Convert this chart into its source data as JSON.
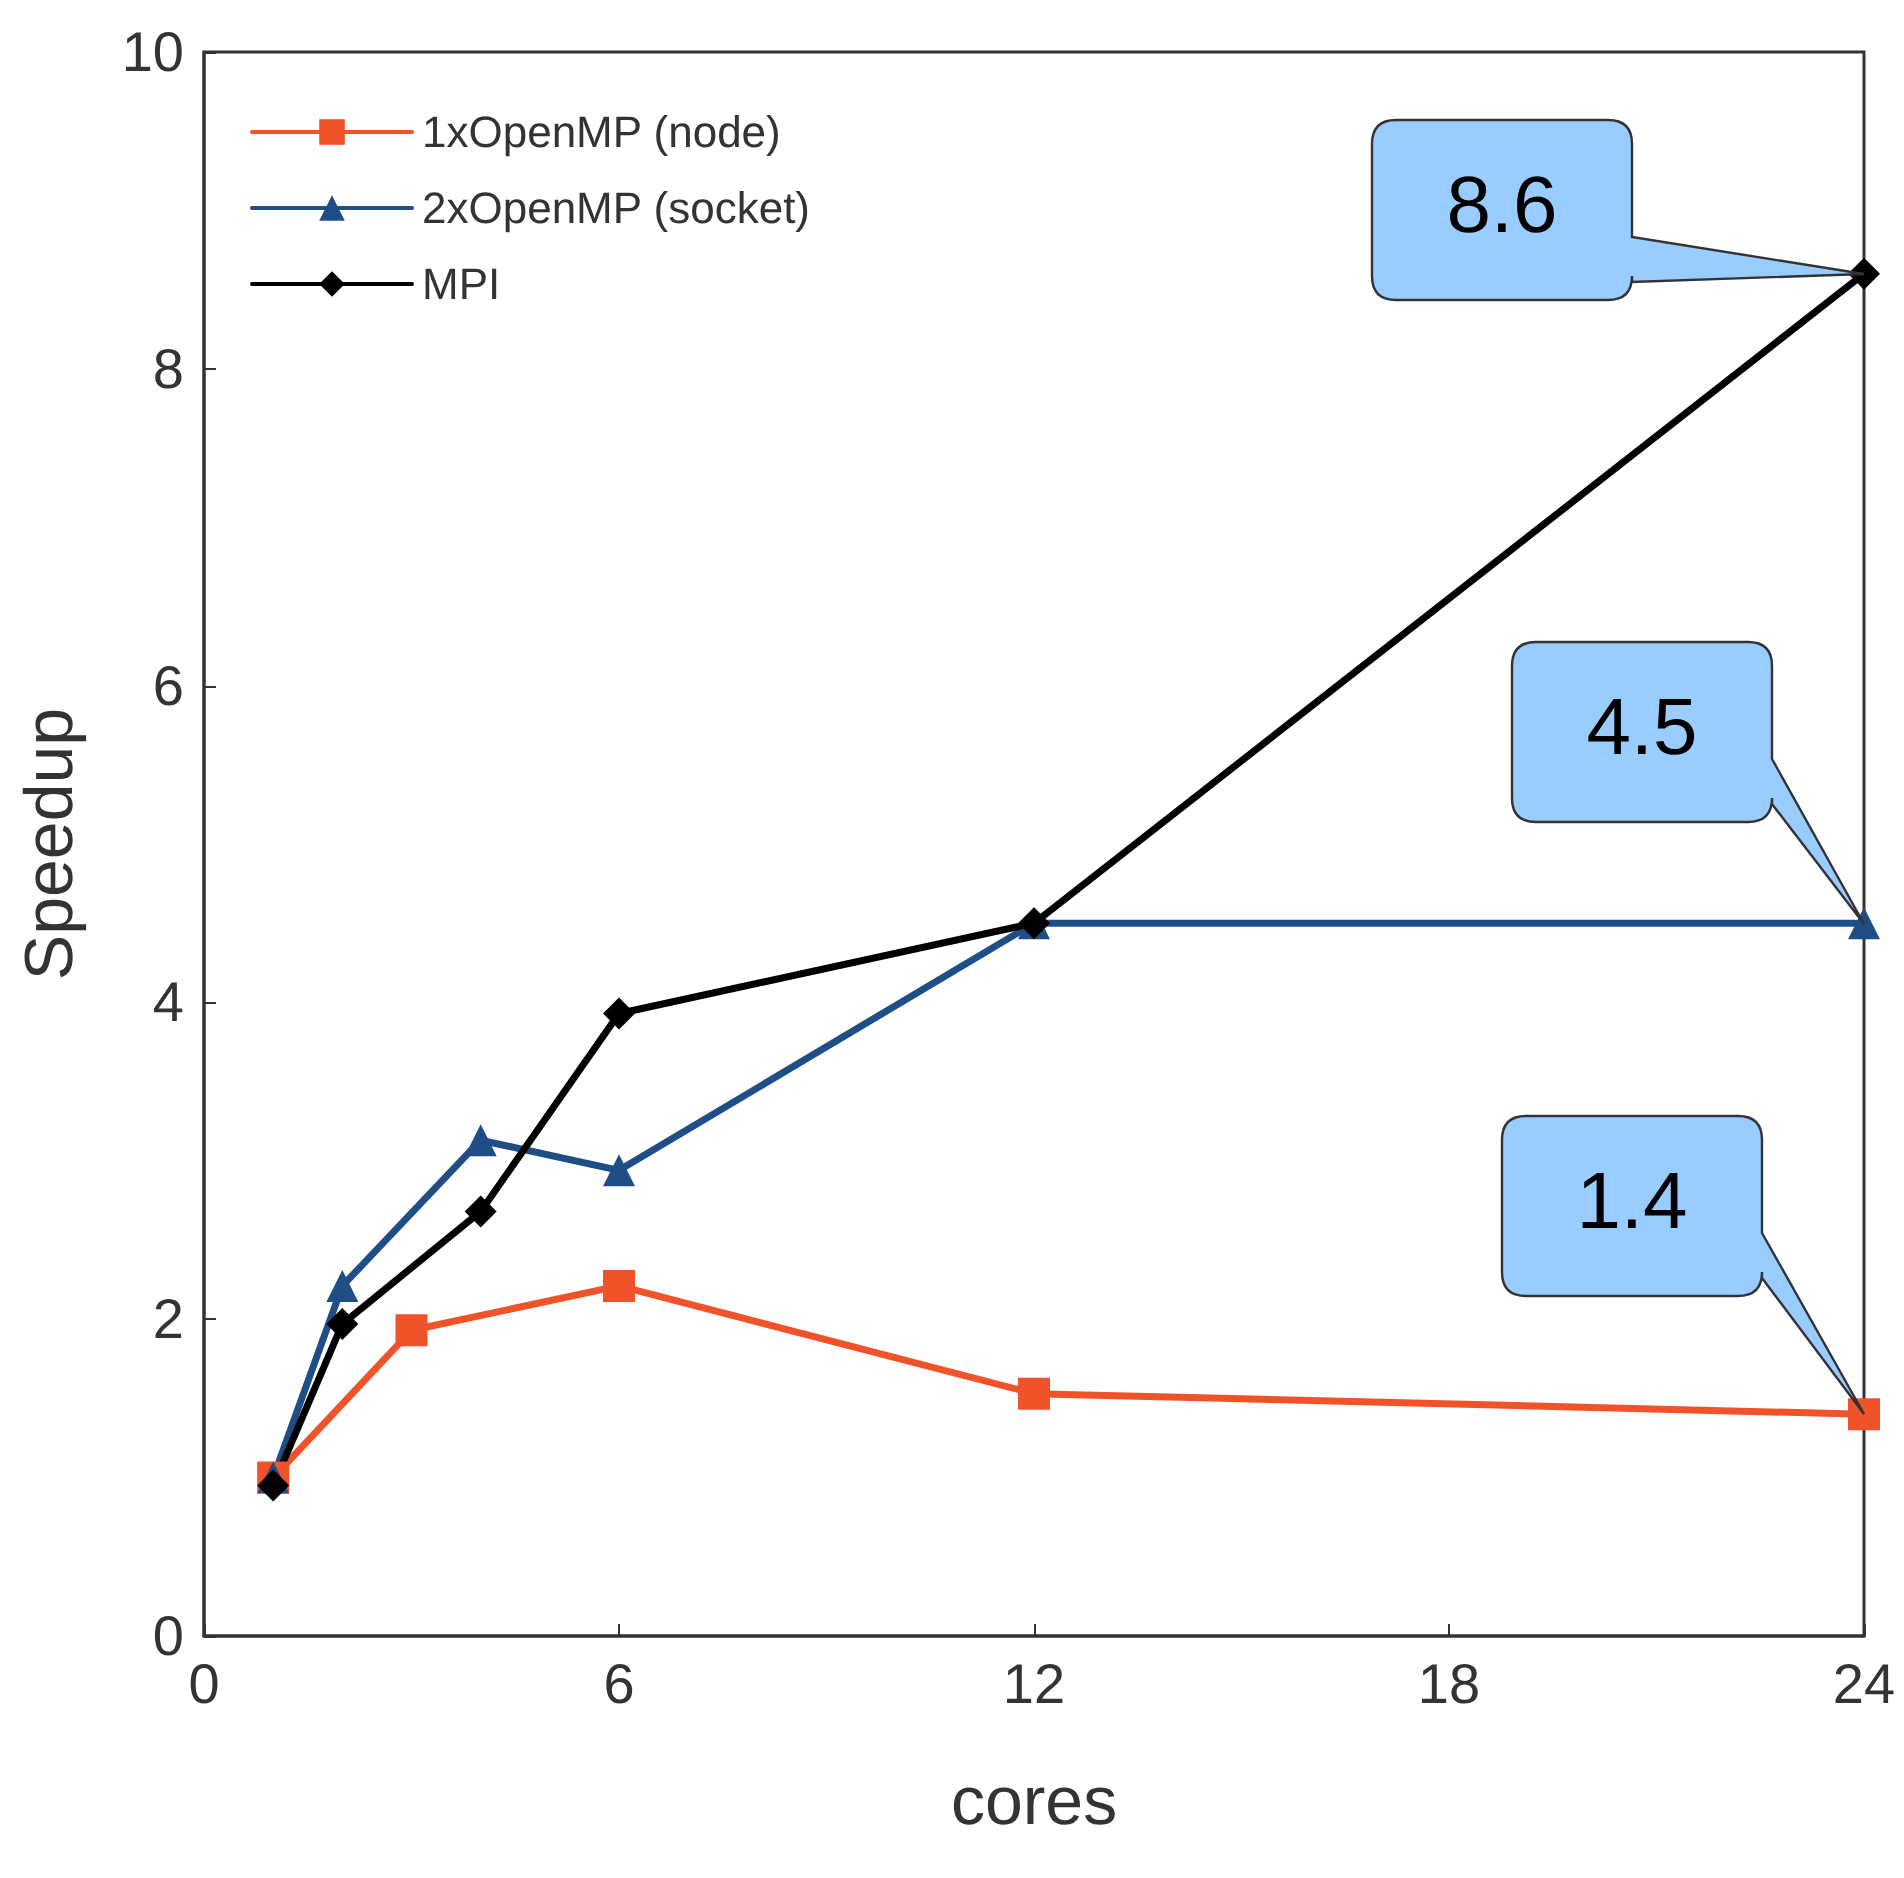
{
  "chart_data": {
    "type": "line",
    "xlabel": "cores",
    "ylabel": "Speedup",
    "xlim": [
      0,
      24
    ],
    "xticks": [
      0,
      6,
      12,
      18,
      24
    ],
    "ylim": [
      0,
      10
    ],
    "yticks": [
      0,
      2,
      4,
      6,
      8,
      10
    ],
    "grid": false,
    "legend": "top left",
    "line_style": "solid",
    "series": [
      {
        "name": "1xOpenMP (node)",
        "color": "#f0522a",
        "marker": "square",
        "x": [
          1,
          3,
          6,
          12,
          24
        ],
        "values": [
          1.0,
          1.93,
          2.21,
          1.53,
          1.4
        ]
      },
      {
        "name": "2xOpenMP (socket)",
        "color": "#1f4e86",
        "marker": "triangle",
        "x": [
          1,
          2,
          4,
          6,
          12,
          24
        ],
        "values": [
          1.0,
          2.21,
          3.13,
          2.94,
          4.5,
          4.5
        ]
      },
      {
        "name": "MPI",
        "color": "#000000",
        "marker": "diamond",
        "x": [
          1,
          2,
          4,
          6,
          12,
          24
        ],
        "values": [
          0.95,
          1.97,
          2.68,
          3.93,
          4.5,
          8.6
        ]
      }
    ],
    "annotations": [
      "8.6",
      "4.5",
      "1.4"
    ]
  }
}
